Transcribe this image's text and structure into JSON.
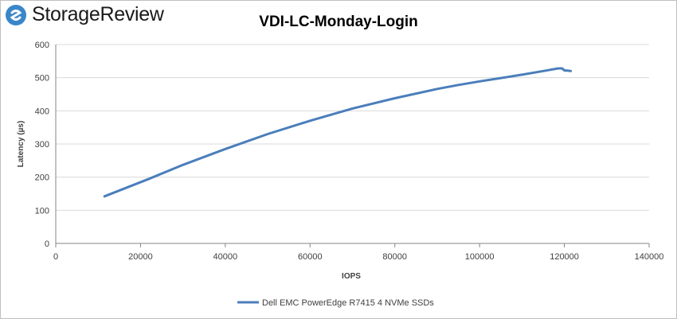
{
  "brand": {
    "name": "StorageReview",
    "logo_icon": "storagereview-logo-icon",
    "logo_color": "#3a86c8"
  },
  "chart_data": {
    "type": "line",
    "title": "VDI-LC-Monday-Login",
    "xlabel": "IOPS",
    "ylabel": "Latency (µs)",
    "xlim": [
      0,
      140000
    ],
    "ylim": [
      0,
      600
    ],
    "xticks": [
      0,
      20000,
      40000,
      60000,
      80000,
      100000,
      120000,
      140000
    ],
    "yticks": [
      0,
      100,
      200,
      300,
      400,
      500,
      600
    ],
    "grid": "horizontal",
    "legend_position": "bottom",
    "series": [
      {
        "name": "Dell EMC PowerEdge R7415 4 NVMe SSDs",
        "color": "#4a7ebb",
        "x": [
          11500,
          22000,
          30000,
          40000,
          50000,
          60000,
          70000,
          80000,
          90000,
          95000,
          100000,
          105000,
          110000,
          115000,
          118500,
          119500,
          120000,
          121000,
          121500
        ],
        "y": [
          142,
          195,
          237,
          285,
          330,
          370,
          407,
          438,
          466,
          478,
          489,
          499,
          509,
          520,
          528,
          528,
          522,
          521,
          520
        ]
      }
    ]
  }
}
